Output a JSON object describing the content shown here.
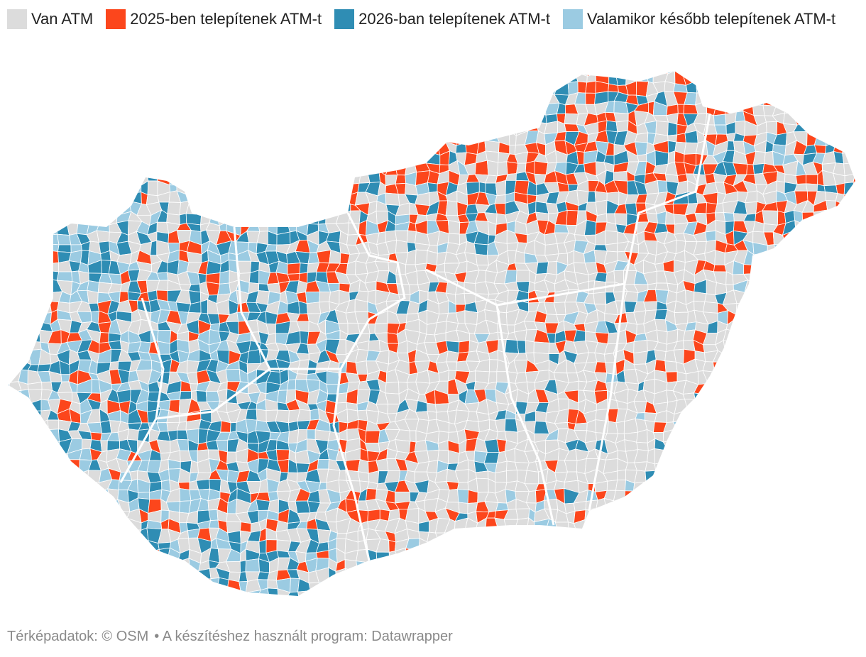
{
  "legend": [
    {
      "label": "Van ATM",
      "color": "#dcdcdc"
    },
    {
      "label": "2025-ben telepítenek ATM-t",
      "color": "#fc461c"
    },
    {
      "label": "2026-ban telepítenek ATM-t",
      "color": "#2f8db4"
    },
    {
      "label": "Valamikor később telepítenek ATM-t",
      "color": "#9bcbe2"
    }
  ],
  "footer": {
    "source": "Térképadatok: © OSM",
    "tool": "• A készítéshez használt program: Datawrapper"
  }
}
